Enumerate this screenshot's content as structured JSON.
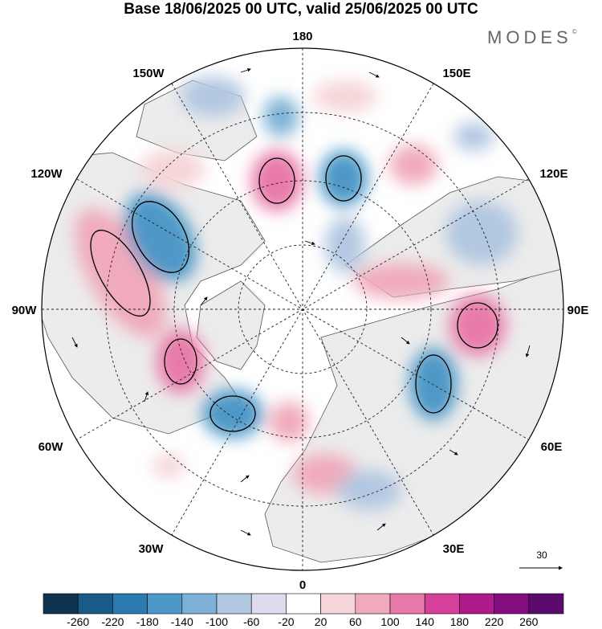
{
  "title": "Base 18/06/2025 00 UTC, valid 25/06/2025 00 UTC",
  "logo": "MODES",
  "logo_mark": "©",
  "projection": "north polar stereographic",
  "longitude_labels": {
    "top": "180",
    "bottom": "0",
    "left": "90W",
    "right": "90E",
    "upper_left": "150W",
    "upper_right": "150E",
    "mid_left_upper": "120W",
    "mid_right_upper": "120E",
    "lower_left": "60W",
    "lower_right": "60E",
    "bottom_left": "30W",
    "bottom_right": "30E"
  },
  "vector_reference": {
    "value": "30"
  },
  "colorbar": {
    "labels": [
      "-260",
      "-220",
      "-180",
      "-140",
      "-100",
      "-60",
      "-20",
      "20",
      "60",
      "100",
      "140",
      "180",
      "220",
      "260"
    ],
    "colors": [
      "#0f3350",
      "#1a5a86",
      "#2b7ab0",
      "#4e98c7",
      "#7eb1d6",
      "#b2c7e1",
      "#dcdcec",
      "#ffffff",
      "#f5d5d8",
      "#f0aabb",
      "#e87aa9",
      "#d5409a",
      "#b01a8a",
      "#840e7f",
      "#5b0a6e"
    ]
  },
  "colors": {
    "land_fill": "#ececec",
    "coast": "#555555",
    "grid": "#222222",
    "positive_anomaly": "#f0aabb",
    "negative_anomaly": "#7eb1d6"
  }
}
